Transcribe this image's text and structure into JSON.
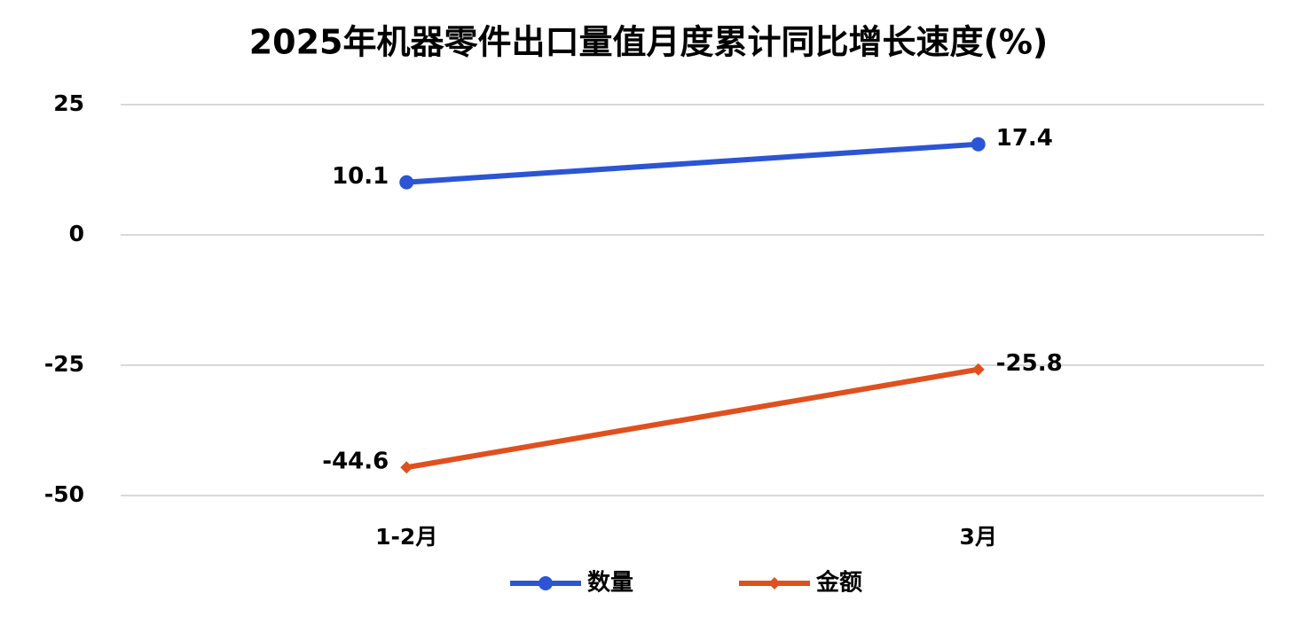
{
  "chart_data": {
    "type": "line",
    "title": "2025年机器零件出口量值月度累计同比增长速度(%)",
    "categories": [
      "1-2月",
      "3月"
    ],
    "series": [
      {
        "name": "数量",
        "color": "#2b55d4",
        "marker": "circle",
        "values": [
          10.1,
          17.4
        ]
      },
      {
        "name": "金额",
        "color": "#e0501e",
        "marker": "diamond",
        "values": [
          -44.6,
          -25.8
        ]
      }
    ],
    "ylim": [
      -50,
      25
    ],
    "yticks": [
      25,
      0,
      -25,
      -50
    ],
    "grid": true,
    "legend": "bottom"
  }
}
